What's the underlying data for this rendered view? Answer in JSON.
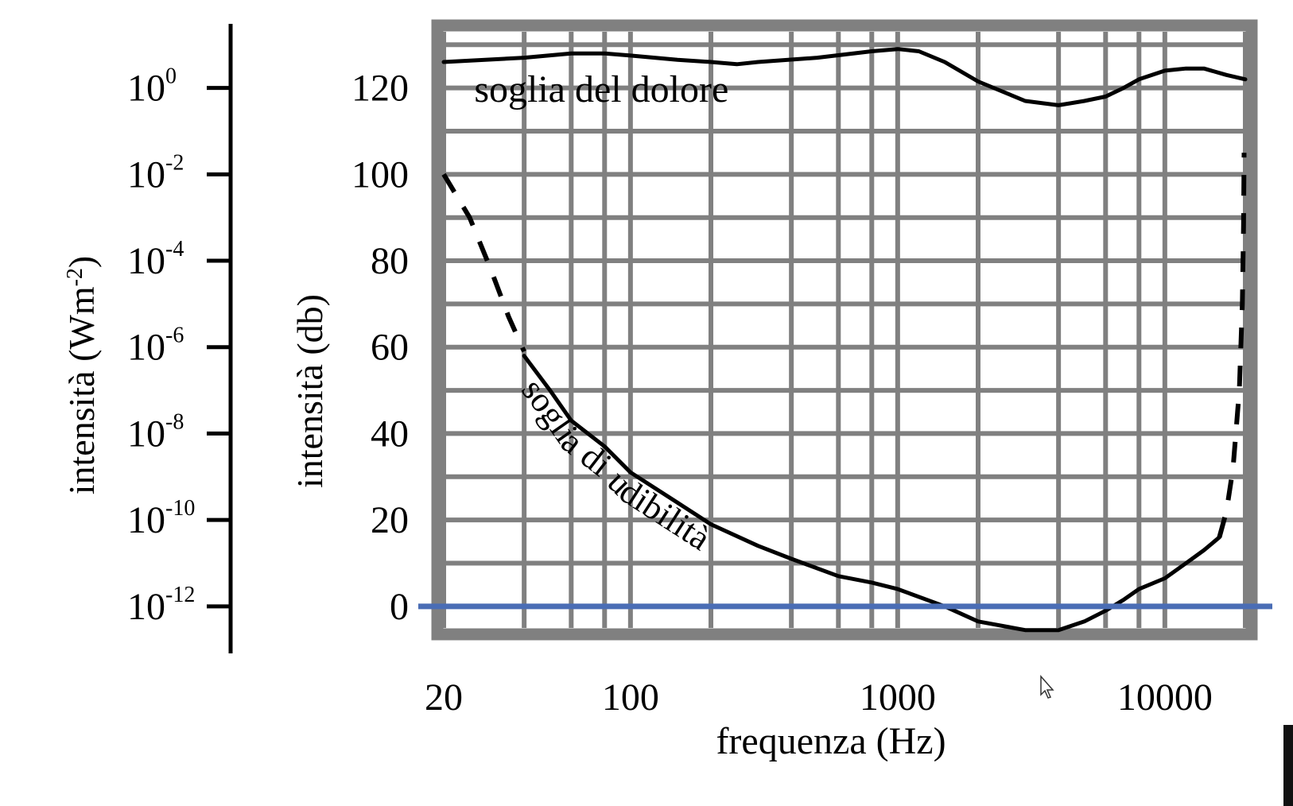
{
  "chart_data": {
    "type": "line",
    "title": "",
    "xlabel": "frequenza  (Hz)",
    "ylabel": "intensità (db)",
    "y2label_base": "intensità (Wm",
    "y2label_exp": "-2",
    "y2label_close": ")",
    "xscale": "log",
    "xlim": [
      20,
      20000
    ],
    "ylim": [
      -5,
      133
    ],
    "x_tick_values": [
      20,
      100,
      1000,
      10000
    ],
    "x_tick_labels": [
      "20",
      "100",
      "1000",
      "10000"
    ],
    "y_tick_values": [
      0,
      20,
      40,
      60,
      80,
      100,
      120
    ],
    "y_tick_labels": [
      "0",
      "20",
      "40",
      "60",
      "80",
      "100",
      "120"
    ],
    "x_grid": [
      20,
      40,
      60,
      80,
      100,
      200,
      400,
      600,
      800,
      1000,
      2000,
      4000,
      6000,
      8000,
      10000,
      20000
    ],
    "y_grid": [
      0,
      10,
      20,
      30,
      40,
      50,
      60,
      70,
      80,
      90,
      100,
      110,
      120,
      130
    ],
    "grid": true,
    "intensity_axis": {
      "db_values": [
        0,
        20,
        40,
        60,
        80,
        100,
        120
      ],
      "base_labels": [
        "10",
        "10",
        "10",
        "10",
        "10",
        "10",
        "10"
      ],
      "exponents": [
        "-12",
        "-10",
        "-8",
        "-6",
        "-4",
        "-2",
        "0"
      ]
    },
    "reference_line": {
      "y": 0,
      "color": "#4a6db5"
    },
    "series": [
      {
        "name": "soglia del dolore",
        "style": "solid",
        "points": [
          [
            20,
            126
          ],
          [
            40,
            127
          ],
          [
            60,
            128
          ],
          [
            80,
            128
          ],
          [
            100,
            127.5
          ],
          [
            150,
            126.5
          ],
          [
            200,
            126
          ],
          [
            250,
            125.5
          ],
          [
            300,
            126
          ],
          [
            500,
            127
          ],
          [
            800,
            128.5
          ],
          [
            1000,
            129
          ],
          [
            1200,
            128.5
          ],
          [
            1500,
            126
          ],
          [
            2000,
            121.5
          ],
          [
            3000,
            117
          ],
          [
            4000,
            116
          ],
          [
            5000,
            117
          ],
          [
            6000,
            118
          ],
          [
            7000,
            120
          ],
          [
            8000,
            122
          ],
          [
            10000,
            124
          ],
          [
            12000,
            124.5
          ],
          [
            14000,
            124.5
          ],
          [
            17000,
            123
          ],
          [
            20000,
            122
          ]
        ]
      },
      {
        "name": "soglia di udibilità",
        "style": "solid",
        "points": [
          [
            40,
            58
          ],
          [
            50,
            50
          ],
          [
            60,
            43
          ],
          [
            80,
            37
          ],
          [
            100,
            31
          ],
          [
            150,
            24
          ],
          [
            200,
            19
          ],
          [
            300,
            14
          ],
          [
            400,
            11
          ],
          [
            600,
            7
          ],
          [
            800,
            5.5
          ],
          [
            1000,
            4
          ],
          [
            1500,
            0
          ],
          [
            2000,
            -3.5
          ],
          [
            3000,
            -5.5
          ],
          [
            4000,
            -5.5
          ],
          [
            5000,
            -3.5
          ],
          [
            6000,
            -1
          ],
          [
            7000,
            1.5
          ],
          [
            8000,
            4
          ],
          [
            10000,
            6.5
          ],
          [
            12000,
            10
          ],
          [
            14000,
            13
          ],
          [
            16000,
            16
          ]
        ]
      },
      {
        "name": "",
        "style": "dashed",
        "points": [
          [
            20,
            100
          ],
          [
            25,
            90
          ],
          [
            30,
            78
          ],
          [
            35,
            67
          ],
          [
            40,
            59
          ]
        ]
      },
      {
        "name": "",
        "style": "dashed",
        "points": [
          [
            16000,
            16
          ],
          [
            17000,
            22
          ],
          [
            18000,
            32
          ],
          [
            19000,
            50
          ],
          [
            19500,
            70
          ],
          [
            19700,
            88
          ],
          [
            19800,
            105
          ]
        ]
      }
    ],
    "annotations": [
      {
        "text": "soglia del dolore",
        "x": 45,
        "y": 119
      },
      {
        "text": "soglia di udibilità",
        "along_series": 1
      }
    ]
  }
}
